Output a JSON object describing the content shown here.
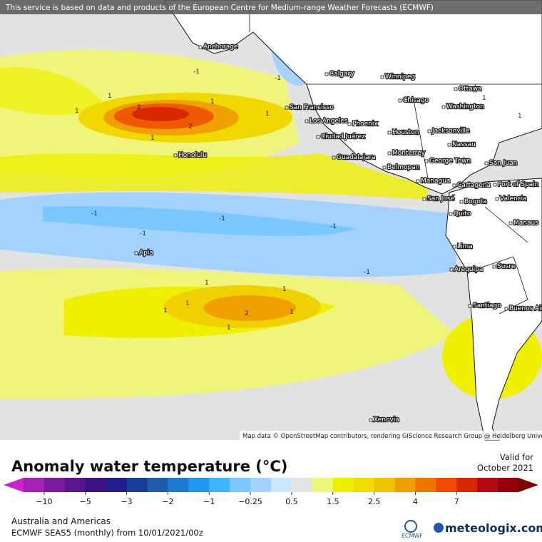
{
  "header": {
    "notice": "This service is based on data and products of the European Centre for Medium-range Weather Forecasts (ECMWF)"
  },
  "map": {
    "attribution": "Map data © OpenStreetMap contributors, rendering GIScience Research Group @ Heidelberg University",
    "cities": [
      "Anchorage",
      "Calgary",
      "Winnipeg",
      "Chicago",
      "Ottawa",
      "Washington",
      "San Francisco",
      "Los Angeles",
      "Phoenix",
      "Ciudad Juárez",
      "Houston",
      "Jacksonville",
      "Honolulu",
      "Nassau",
      "Monterrey",
      "Guadalajara",
      "George Town",
      "San Juan",
      "Belmopan",
      "Managua",
      "Cartagena",
      "Port of Spain",
      "San José",
      "Bogota",
      "Valencia",
      "Quito",
      "Manaus",
      "Apia",
      "Lima",
      "Arequipa",
      "Sucre",
      "Santiago",
      "Buenos Aires",
      "Xenovia"
    ],
    "contour_labels": [
      "1",
      "2",
      "2",
      "1",
      "1",
      "1",
      "1",
      "-1",
      "-1",
      "-1",
      "-1",
      "-1",
      "-1",
      "-1",
      "1",
      "1",
      "1",
      "2",
      "1",
      "1",
      "1",
      "1",
      "1"
    ]
  },
  "legend": {
    "title": "Anomaly water temperature (°C)",
    "valid_label": "Valid for",
    "valid_date": "October 2021",
    "ticks": [
      "−10",
      "−5",
      "−3",
      "−2",
      "−1",
      "−0.25",
      "0.5",
      "1.5",
      "2.5",
      "4",
      "7"
    ],
    "colors": [
      "#cc22cc",
      "#a61fb6",
      "#7d1aa2",
      "#5c1592",
      "#3c1085",
      "#1e1c8e",
      "#153f98",
      "#1e5cab",
      "#1e7bd4",
      "#1f97f0",
      "#3db4ff",
      "#79c8ff",
      "#a2d4ff",
      "#cbe6ff",
      "#e4e4e4",
      "#eef97a",
      "#eff000",
      "#f0dc00",
      "#f0c400",
      "#f09e00",
      "#f07400",
      "#ef4a00",
      "#d82800",
      "#b40a14",
      "#96000a",
      "#7a0000"
    ]
  },
  "footer": {
    "region": "Australia and Americas",
    "model": "ECMWF SEAS5 (monthly) from 10/01/2021/00z",
    "logo_left": "ECMWF",
    "logo_right": "meteologix.com"
  }
}
